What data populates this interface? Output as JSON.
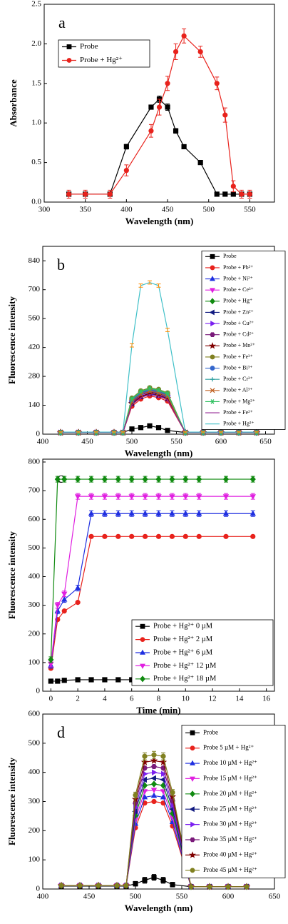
{
  "chart_data": [
    {
      "type": "line",
      "label": "a",
      "x_label": "Wavelength (nm)",
      "y_label": "Absorbance",
      "xlim": [
        300,
        580
      ],
      "xticks": [
        300,
        350,
        400,
        450,
        500,
        550
      ],
      "ylim": [
        0,
        2.5
      ],
      "yticks": [
        {
          "value": 0,
          "label": "0.0"
        },
        0.5,
        {
          "value": 1,
          "label": "1.0"
        },
        1.5,
        {
          "value": 2,
          "label": "2.0"
        },
        2.5
      ],
      "legend": "upper left",
      "x": [
        330,
        350,
        380,
        400,
        430,
        440,
        450,
        460,
        470,
        490,
        510,
        520,
        530,
        540,
        550
      ],
      "series": [
        {
          "name": "Probe",
          "color": "#000000",
          "marker": "square",
          "values": [
            0.1,
            0.1,
            0.1,
            0.7,
            1.2,
            1.3,
            1.2,
            0.9,
            0.7,
            0.5,
            0.1,
            0.1,
            0.1,
            0.1,
            0.1
          ],
          "errors": [
            0.01,
            0.01,
            0.01,
            0.03,
            0.02,
            0.04,
            0.04,
            0.03,
            0.02,
            0.02,
            0.01,
            0.01,
            0.01,
            0.01,
            0.01
          ]
        },
        {
          "name": "Probe + Hg²⁺",
          "color": "#e8221c",
          "marker": "circle",
          "values": [
            0.1,
            0.1,
            0.1,
            0.4,
            0.9,
            1.2,
            1.5,
            1.9,
            2.1,
            1.9,
            1.5,
            1.1,
            0.2,
            0.1,
            0.1
          ],
          "errors": [
            0.05,
            0.05,
            0.05,
            0.07,
            0.08,
            0.1,
            0.09,
            0.1,
            0.09,
            0.07,
            0.08,
            0.09,
            0.07,
            0.05,
            0.05
          ]
        }
      ]
    },
    {
      "type": "line",
      "label": "b",
      "x_label": "Wavelength (nm)",
      "y_label": "Fluorescence intensity",
      "xlim": [
        400,
        660
      ],
      "xticks": [
        400,
        450,
        500,
        550,
        600,
        650
      ],
      "ylim": [
        0,
        910
      ],
      "yticks": [
        0,
        140,
        280,
        420,
        560,
        700,
        840
      ],
      "legend": "right",
      "x": [
        420,
        440,
        460,
        480,
        490,
        500,
        510,
        520,
        530,
        540,
        560,
        580,
        600,
        620,
        640
      ],
      "series": [
        {
          "name": "Probe",
          "color": "#000000",
          "marker": "square",
          "values": [
            8,
            8,
            8,
            8,
            8,
            25,
            32,
            40,
            32,
            18,
            8,
            8,
            8,
            8,
            8
          ]
        },
        {
          "name": "Probe + Pb²⁺",
          "color": "#e8221c",
          "marker": "circle",
          "values": [
            8,
            8,
            8,
            8,
            8,
            135,
            170,
            185,
            177,
            160,
            8,
            8,
            8,
            8,
            8
          ]
        },
        {
          "name": "Probe + Ni²⁺",
          "color": "#1f2fe0",
          "marker": "triangle-up",
          "values": [
            8,
            8,
            8,
            8,
            8,
            145,
            180,
            195,
            187,
            170,
            8,
            8,
            8,
            8,
            8
          ]
        },
        {
          "name": "Probe + Ce³⁺",
          "color": "#e020e0",
          "marker": "triangle-down",
          "values": [
            8,
            8,
            8,
            8,
            8,
            150,
            185,
            200,
            192,
            175,
            8,
            8,
            8,
            8,
            8
          ]
        },
        {
          "name": "Probe + Hg⁺",
          "color": "#108a10",
          "marker": "diamond",
          "values": [
            8,
            8,
            8,
            8,
            8,
            170,
            205,
            220,
            212,
            195,
            8,
            8,
            8,
            8,
            8
          ]
        },
        {
          "name": "Probe + Zn²⁺",
          "color": "#101a80",
          "marker": "triangle-left",
          "values": [
            8,
            8,
            8,
            8,
            8,
            155,
            190,
            205,
            197,
            180,
            8,
            8,
            8,
            8,
            8
          ]
        },
        {
          "name": "Probe + Cu²⁺",
          "color": "#7a1ff0",
          "marker": "triangle-right",
          "values": [
            8,
            8,
            8,
            8,
            8,
            160,
            195,
            210,
            202,
            185,
            8,
            8,
            8,
            8,
            8
          ]
        },
        {
          "name": "Probe + Cd²⁺",
          "color": "#7a1a7a",
          "marker": "hexagon",
          "values": [
            8,
            8,
            8,
            8,
            8,
            165,
            200,
            215,
            207,
            190,
            8,
            8,
            8,
            8,
            8
          ]
        },
        {
          "name": "Probe + Mn²⁺",
          "color": "#800000",
          "marker": "star",
          "values": [
            8,
            8,
            8,
            8,
            8,
            148,
            183,
            198,
            190,
            173,
            8,
            8,
            8,
            8,
            8
          ]
        },
        {
          "name": "Probe + Fe³⁺",
          "color": "#808020",
          "marker": "circle",
          "values": [
            8,
            8,
            8,
            8,
            8,
            175,
            210,
            225,
            217,
            200,
            8,
            8,
            8,
            8,
            8
          ]
        },
        {
          "name": "Probe + Bi³⁺",
          "color": "#3366cc",
          "marker": "circle",
          "values": [
            8,
            8,
            8,
            8,
            8,
            162,
            197,
            212,
            204,
            187,
            8,
            8,
            8,
            8,
            8
          ]
        },
        {
          "name": "Probe + Cr³⁺",
          "color": "#30a0a0",
          "marker": "plus",
          "values": [
            8,
            8,
            8,
            8,
            8,
            168,
            203,
            218,
            210,
            193,
            8,
            8,
            8,
            8,
            8
          ]
        },
        {
          "name": "Probe + Al³⁺",
          "color": "#c06020",
          "marker": "x",
          "values": [
            8,
            8,
            8,
            8,
            8,
            158,
            193,
            208,
            200,
            183,
            8,
            8,
            8,
            8,
            8
          ]
        },
        {
          "name": "Probe + Mg²⁺",
          "color": "#30c060",
          "marker": "asterisk",
          "values": [
            8,
            8,
            8,
            8,
            8,
            172,
            207,
            222,
            214,
            197,
            8,
            8,
            8,
            8,
            8
          ]
        },
        {
          "name": "Probe + Fe²⁺",
          "color": "#902090",
          "marker": "none",
          "values": [
            8,
            8,
            8,
            8,
            8,
            142,
            177,
            192,
            184,
            167,
            8,
            8,
            8,
            8,
            8
          ]
        },
        {
          "name": "Probe + Hg²⁺",
          "color": "#40c0c8",
          "marker": "none",
          "error_color": "#ff8c00",
          "values": [
            10,
            10,
            10,
            10,
            10,
            430,
            720,
            735,
            720,
            505,
            10,
            10,
            10,
            10,
            10
          ],
          "errors": [
            3,
            3,
            3,
            3,
            3,
            8,
            8,
            8,
            8,
            8,
            3,
            3,
            3,
            3,
            3
          ]
        }
      ]
    },
    {
      "type": "line",
      "label": "c",
      "x_label": "Time (min)",
      "y_label": "Fluorescence intensity",
      "xlim": [
        -0.6,
        16.6
      ],
      "xticks": [
        0,
        2,
        4,
        6,
        8,
        10,
        12,
        14,
        16
      ],
      "ylim": [
        0,
        810
      ],
      "yticks": [
        0,
        100,
        200,
        300,
        400,
        500,
        600,
        700,
        800
      ],
      "legend": "lower right",
      "x": [
        0,
        0.5,
        1,
        2,
        3,
        4,
        5,
        6,
        7,
        8,
        9,
        10,
        11,
        13,
        15
      ],
      "series": [
        {
          "name": "Probe + Hg²⁺  0 µM",
          "color": "#000000",
          "marker": "square",
          "values": [
            35,
            35,
            38,
            40,
            40,
            40,
            40,
            40,
            40,
            40,
            40,
            40,
            40,
            40,
            40
          ]
        },
        {
          "name": "Probe + Hg²⁺  2 µM",
          "color": "#e8221c",
          "marker": "circle",
          "values": [
            80,
            250,
            280,
            310,
            540,
            540,
            540,
            540,
            540,
            540,
            540,
            540,
            540,
            540,
            540
          ]
        },
        {
          "name": "Probe + Hg²⁺  6 µM",
          "color": "#1f2fe0",
          "marker": "triangle-up",
          "values": [
            90,
            280,
            320,
            360,
            620,
            620,
            620,
            620,
            620,
            620,
            620,
            620,
            620,
            620,
            620
          ],
          "errors": [
            10,
            10,
            10,
            10,
            10,
            10,
            10,
            10,
            10,
            10,
            10,
            10,
            10,
            10,
            10
          ]
        },
        {
          "name": "Probe + Hg²⁺  12 µM",
          "color": "#e020e0",
          "marker": "triangle-down",
          "values": [
            95,
            300,
            340,
            680,
            680,
            680,
            680,
            680,
            680,
            680,
            680,
            680,
            680,
            680,
            680
          ],
          "errors": [
            10,
            10,
            10,
            10,
            10,
            10,
            10,
            10,
            10,
            10,
            10,
            10,
            10,
            10,
            10
          ]
        },
        {
          "name": "Probe + Hg²⁺  18 µM",
          "color": "#108a10",
          "marker": "diamond",
          "values": [
            110,
            740,
            740,
            740,
            740,
            740,
            740,
            740,
            740,
            740,
            740,
            740,
            740,
            740,
            740
          ],
          "errors": [
            10,
            10,
            10,
            10,
            10,
            10,
            10,
            10,
            10,
            10,
            10,
            10,
            10,
            10,
            10
          ]
        }
      ]
    },
    {
      "type": "line",
      "label": "d",
      "x_label": "Wavelength (nm)",
      "y_label": "Fluorescence intensity",
      "xlim": [
        400,
        650
      ],
      "xticks": [
        400,
        450,
        500,
        550,
        600,
        650
      ],
      "ylim": [
        0,
        600
      ],
      "yticks": [
        0,
        100,
        200,
        300,
        400,
        500,
        600
      ],
      "legend": "right",
      "x": [
        420,
        440,
        460,
        480,
        490,
        500,
        510,
        520,
        530,
        540,
        560,
        580,
        600,
        620
      ],
      "series": [
        {
          "name": "Probe",
          "color": "#000000",
          "marker": "square",
          "values": [
            10,
            10,
            10,
            10,
            10,
            18,
            30,
            40,
            30,
            15,
            8,
            8,
            8,
            8
          ],
          "errors": [
            5,
            5,
            5,
            5,
            5,
            8,
            10,
            10,
            10,
            8,
            5,
            5,
            5,
            5
          ]
        },
        {
          "name": "Probe 5 µM + Hg²⁺",
          "color": "#e8221c",
          "marker": "circle",
          "values": [
            12,
            12,
            12,
            12,
            12,
            210,
            295,
            300,
            295,
            216,
            8,
            8,
            8,
            8
          ]
        },
        {
          "name": "Probe 10 µM + Hg²⁺",
          "color": "#1f2fe0",
          "marker": "triangle-up",
          "values": [
            12,
            12,
            12,
            12,
            12,
            224,
            315,
            320,
            315,
            230,
            8,
            8,
            8,
            8
          ]
        },
        {
          "name": "Probe 15 µM + Hg²⁺",
          "color": "#e020e0",
          "marker": "triangle-down",
          "values": [
            12,
            12,
            12,
            12,
            12,
            238,
            335,
            340,
            335,
            245,
            8,
            8,
            8,
            8
          ]
        },
        {
          "name": "Probe 20 µM + Hg²⁺",
          "color": "#108a10",
          "marker": "diamond",
          "values": [
            12,
            12,
            12,
            12,
            12,
            252,
            355,
            360,
            355,
            259,
            8,
            8,
            8,
            8
          ]
        },
        {
          "name": "Probe 25 µM + Hg²⁺",
          "color": "#101a80",
          "marker": "triangle-left",
          "values": [
            12,
            12,
            12,
            12,
            12,
            266,
            375,
            380,
            375,
            274,
            8,
            8,
            8,
            8
          ]
        },
        {
          "name": "Probe 30 µM + Hg²⁺",
          "color": "#7a1ff0",
          "marker": "triangle-right",
          "values": [
            12,
            12,
            12,
            12,
            12,
            280,
            395,
            400,
            395,
            288,
            8,
            8,
            8,
            8
          ]
        },
        {
          "name": "Probe 35 µM + Hg²⁺",
          "color": "#7a1a7a",
          "marker": "hexagon",
          "values": [
            12,
            12,
            12,
            12,
            12,
            294,
            415,
            420,
            415,
            302,
            8,
            8,
            8,
            8
          ]
        },
        {
          "name": "Probe 40 µM + Hg²⁺",
          "color": "#800000",
          "marker": "star",
          "values": [
            12,
            12,
            12,
            12,
            12,
            308,
            435,
            440,
            435,
            317,
            8,
            8,
            8,
            8
          ]
        },
        {
          "name": "Probe 45 µM + Hg²⁺",
          "color": "#808020",
          "marker": "circle",
          "values": [
            12,
            12,
            12,
            12,
            12,
            322,
            455,
            460,
            455,
            331,
            8,
            8,
            8,
            8
          ],
          "errors": [
            5,
            5,
            5,
            5,
            5,
            10,
            12,
            12,
            12,
            10,
            5,
            5,
            5,
            5
          ]
        }
      ]
    }
  ]
}
